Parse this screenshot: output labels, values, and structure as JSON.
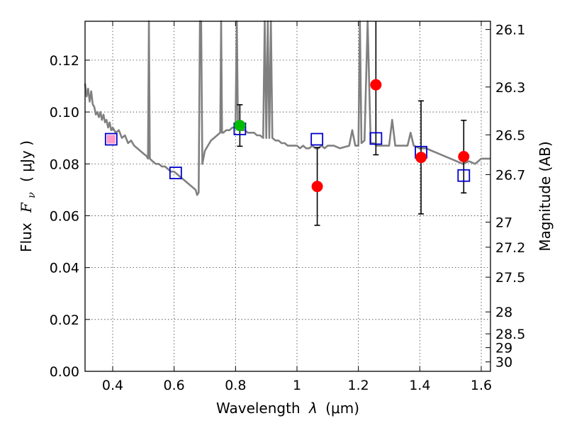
{
  "chart_data": {
    "type": "scatter",
    "x_label_prefix": "Wavelength",
    "x_label_symbol": "λ",
    "x_label_unit": "(μm)",
    "y_label_prefix": "Flux",
    "y_label_symbol_main": "F",
    "y_label_symbol_sub": "ν",
    "y_label_unit": "( μJy )",
    "y2_label": "Magnitude (AB)",
    "xlim": [
      0.31,
      1.63
    ],
    "ylim": [
      0.0,
      0.135
    ],
    "grid": true,
    "x_ticks": [
      {
        "value": 0.4,
        "label": "0.4"
      },
      {
        "value": 0.6,
        "label": "0.6"
      },
      {
        "value": 0.8,
        "label": "0.8"
      },
      {
        "value": 1.0,
        "label": "1"
      },
      {
        "value": 1.2,
        "label": "1.2"
      },
      {
        "value": 1.4,
        "label": "1.4"
      },
      {
        "value": 1.6,
        "label": "1.6"
      }
    ],
    "y_ticks": [
      {
        "value": 0.0,
        "label": "0.00"
      },
      {
        "value": 0.02,
        "label": "0.02"
      },
      {
        "value": 0.04,
        "label": "0.04"
      },
      {
        "value": 0.06,
        "label": "0.06"
      },
      {
        "value": 0.08,
        "label": "0.08"
      },
      {
        "value": 0.1,
        "label": "0.10"
      },
      {
        "value": 0.12,
        "label": "0.12"
      }
    ],
    "magnitude_ticks": [
      {
        "mag": 26.1,
        "label": "26.1"
      },
      {
        "mag": 26.3,
        "label": "26.3"
      },
      {
        "mag": 26.5,
        "label": "26.5"
      },
      {
        "mag": 26.7,
        "label": "26.7"
      },
      {
        "mag": 27.0,
        "label": "27"
      },
      {
        "mag": 27.2,
        "label": "27.2"
      },
      {
        "mag": 27.5,
        "label": "27.5"
      },
      {
        "mag": 28.0,
        "label": "28"
      },
      {
        "mag": 28.5,
        "label": "28.5"
      },
      {
        "mag": 29.0,
        "label": "29"
      },
      {
        "mag": 30.0,
        "label": "30"
      }
    ],
    "series": [
      {
        "kind": "model_spectrum",
        "color": "#808080",
        "points": [
          [
            0.31,
            0.111
          ],
          [
            0.315,
            0.106
          ],
          [
            0.32,
            0.109
          ],
          [
            0.325,
            0.104
          ],
          [
            0.33,
            0.108
          ],
          [
            0.335,
            0.103
          ],
          [
            0.34,
            0.102
          ],
          [
            0.345,
            0.099
          ],
          [
            0.35,
            0.1
          ],
          [
            0.355,
            0.098
          ],
          [
            0.36,
            0.1
          ],
          [
            0.365,
            0.097
          ],
          [
            0.37,
            0.099
          ],
          [
            0.375,
            0.096
          ],
          [
            0.38,
            0.097
          ],
          [
            0.385,
            0.094
          ],
          [
            0.39,
            0.096
          ],
          [
            0.395,
            0.093
          ],
          [
            0.4,
            0.094
          ],
          [
            0.41,
            0.092
          ],
          [
            0.42,
            0.093
          ],
          [
            0.43,
            0.09
          ],
          [
            0.44,
            0.091
          ],
          [
            0.45,
            0.088
          ],
          [
            0.46,
            0.089
          ],
          [
            0.47,
            0.087
          ],
          [
            0.48,
            0.086
          ],
          [
            0.49,
            0.085
          ],
          [
            0.5,
            0.084
          ],
          [
            0.51,
            0.083
          ],
          [
            0.515,
            0.082
          ],
          [
            0.518,
            0.135
          ],
          [
            0.521,
            0.082
          ],
          [
            0.53,
            0.081
          ],
          [
            0.54,
            0.08
          ],
          [
            0.55,
            0.08
          ],
          [
            0.56,
            0.079
          ],
          [
            0.57,
            0.079
          ],
          [
            0.58,
            0.078
          ],
          [
            0.59,
            0.077
          ],
          [
            0.6,
            0.077
          ],
          [
            0.61,
            0.076
          ],
          [
            0.62,
            0.075
          ],
          [
            0.63,
            0.074
          ],
          [
            0.64,
            0.073
          ],
          [
            0.65,
            0.072
          ],
          [
            0.66,
            0.071
          ],
          [
            0.67,
            0.07
          ],
          [
            0.675,
            0.068
          ],
          [
            0.68,
            0.069
          ],
          [
            0.684,
            0.135
          ],
          [
            0.688,
            0.135
          ],
          [
            0.692,
            0.08
          ],
          [
            0.7,
            0.085
          ],
          [
            0.71,
            0.087
          ],
          [
            0.72,
            0.089
          ],
          [
            0.73,
            0.09
          ],
          [
            0.74,
            0.091
          ],
          [
            0.75,
            0.092
          ],
          [
            0.753,
            0.135
          ],
          [
            0.756,
            0.092
          ],
          [
            0.76,
            0.092
          ],
          [
            0.77,
            0.093
          ],
          [
            0.78,
            0.093
          ],
          [
            0.79,
            0.094
          ],
          [
            0.8,
            0.094
          ],
          [
            0.804,
            0.135
          ],
          [
            0.808,
            0.094
          ],
          [
            0.82,
            0.093
          ],
          [
            0.83,
            0.093
          ],
          [
            0.84,
            0.092
          ],
          [
            0.85,
            0.092
          ],
          [
            0.86,
            0.092
          ],
          [
            0.87,
            0.091
          ],
          [
            0.88,
            0.091
          ],
          [
            0.89,
            0.09
          ],
          [
            0.895,
            0.135
          ],
          [
            0.9,
            0.09
          ],
          [
            0.905,
            0.135
          ],
          [
            0.91,
            0.09
          ],
          [
            0.915,
            0.135
          ],
          [
            0.92,
            0.09
          ],
          [
            0.93,
            0.089
          ],
          [
            0.94,
            0.089
          ],
          [
            0.95,
            0.088
          ],
          [
            0.96,
            0.088
          ],
          [
            0.97,
            0.087
          ],
          [
            0.98,
            0.087
          ],
          [
            0.99,
            0.087
          ],
          [
            1.0,
            0.087
          ],
          [
            1.01,
            0.086
          ],
          [
            1.02,
            0.087
          ],
          [
            1.03,
            0.086
          ],
          [
            1.04,
            0.086
          ],
          [
            1.05,
            0.087
          ],
          [
            1.06,
            0.086
          ],
          [
            1.07,
            0.086
          ],
          [
            1.08,
            0.087
          ],
          [
            1.09,
            0.086
          ],
          [
            1.1,
            0.087
          ],
          [
            1.12,
            0.087
          ],
          [
            1.14,
            0.086
          ],
          [
            1.17,
            0.087
          ],
          [
            1.18,
            0.093
          ],
          [
            1.19,
            0.087
          ],
          [
            1.2,
            0.087
          ],
          [
            1.205,
            0.135
          ],
          [
            1.21,
            0.088
          ],
          [
            1.22,
            0.089
          ],
          [
            1.23,
            0.135
          ],
          [
            1.24,
            0.088
          ],
          [
            1.25,
            0.088
          ],
          [
            1.26,
            0.087
          ],
          [
            1.28,
            0.087
          ],
          [
            1.3,
            0.087
          ],
          [
            1.31,
            0.097
          ],
          [
            1.32,
            0.087
          ],
          [
            1.34,
            0.087
          ],
          [
            1.36,
            0.087
          ],
          [
            1.37,
            0.092
          ],
          [
            1.38,
            0.087
          ],
          [
            1.4,
            0.086
          ],
          [
            1.42,
            0.086
          ],
          [
            1.44,
            0.085
          ],
          [
            1.46,
            0.084
          ],
          [
            1.48,
            0.083
          ],
          [
            1.5,
            0.082
          ],
          [
            1.52,
            0.081
          ],
          [
            1.54,
            0.08
          ],
          [
            1.56,
            0.081
          ],
          [
            1.58,
            0.08
          ],
          [
            1.6,
            0.082
          ],
          [
            1.63,
            0.082
          ]
        ]
      },
      {
        "kind": "model_photometry",
        "marker": "open-square",
        "edge_color": "#0000cc",
        "points": [
          {
            "x": 0.395,
            "y": 0.0895
          },
          {
            "x": 0.605,
            "y": 0.0765
          },
          {
            "x": 0.814,
            "y": 0.0935
          },
          {
            "x": 1.065,
            "y": 0.0895
          },
          {
            "x": 1.257,
            "y": 0.0898
          },
          {
            "x": 1.404,
            "y": 0.0845
          },
          {
            "x": 1.543,
            "y": 0.0755
          }
        ]
      },
      {
        "kind": "observed_photometry",
        "marker": "filled-circle",
        "points": [
          {
            "x": 0.814,
            "y": 0.0948,
            "err": 0.008,
            "color": "#00bb00"
          },
          {
            "x": 1.066,
            "y": 0.0713,
            "err": 0.015,
            "color": "#ff0000"
          },
          {
            "x": 1.257,
            "y": 0.1105,
            "err": 0.027,
            "color": "#ff0000"
          },
          {
            "x": 1.404,
            "y": 0.0825,
            "err": 0.0218,
            "color": "#ff0000"
          },
          {
            "x": 1.543,
            "y": 0.0828,
            "err": 0.014,
            "color": "#ff0000"
          }
        ]
      }
    ],
    "upper_limit_marker": {
      "x": 0.395,
      "y": 0.0895,
      "color": "#ff99cc"
    }
  }
}
